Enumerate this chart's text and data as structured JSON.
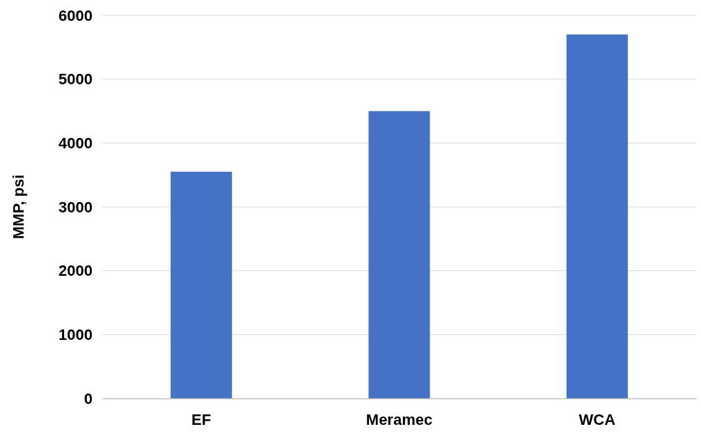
{
  "chart_data": {
    "type": "bar",
    "ylabel": "MMP, psi",
    "categories": [
      "EF",
      "Meramec",
      "WCA"
    ],
    "values": [
      3550,
      4500,
      5700
    ],
    "color": "#4472c4",
    "ylim": [
      0,
      6000
    ],
    "yticks": [
      0,
      1000,
      2000,
      3000,
      4000,
      5000,
      6000
    ],
    "grid": "y"
  }
}
